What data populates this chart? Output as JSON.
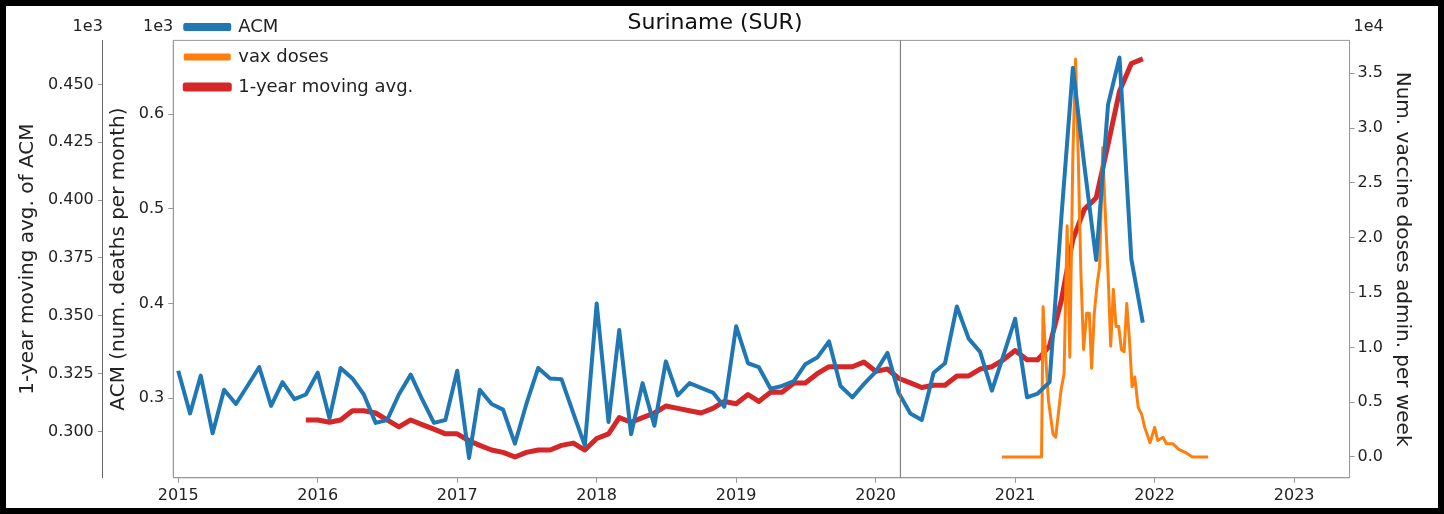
{
  "chart_data": {
    "type": "line",
    "title": "Suriname (SUR)",
    "ylabel": "ACM (num. deaths per month)",
    "y2label": "Num. vaccine doses admin. per week",
    "y3label": "1-year moving avg. of ACM",
    "xlim": [
      "2014-12-19",
      "2023-05-26"
    ],
    "xticks": [
      {
        "value": "2015-01-01",
        "label": "2015"
      },
      {
        "value": "2016-01-01",
        "label": "2016"
      },
      {
        "value": "2017-01-01",
        "label": "2017"
      },
      {
        "value": "2018-01-01",
        "label": "2018"
      },
      {
        "value": "2019-01-01",
        "label": "2019"
      },
      {
        "value": "2020-01-01",
        "label": "2020"
      },
      {
        "value": "2021-01-01",
        "label": "2021"
      },
      {
        "value": "2022-01-01",
        "label": "2022"
      },
      {
        "value": "2023-01-01",
        "label": "2023"
      }
    ],
    "ylim": [
      0.216,
      0.678
    ],
    "yticks": [
      0.3,
      0.4,
      0.5,
      0.6,
      {
        "value": null,
        "label": "1e3"
      }
    ],
    "y2lim": [
      -0.19,
      3.8
    ],
    "y2ticks": [
      {
        "value": 0,
        "label": "0.0"
      },
      0.5,
      {
        "value": 1,
        "label": "1.0"
      },
      1.5,
      {
        "value": 2,
        "label": "2.0"
      },
      2.5,
      {
        "value": 3,
        "label": "3.0"
      },
      3.5,
      {
        "value": null,
        "label": "1e4"
      }
    ],
    "y3lim": [
      0.28,
      0.469
    ],
    "y3ticks": [
      {
        "value": 0.3,
        "label": "0.300"
      },
      0.325,
      {
        "value": 0.35,
        "label": "0.350"
      },
      0.375,
      {
        "value": 0.4,
        "label": "0.400"
      },
      0.425,
      {
        "value": 0.45,
        "label": "0.450"
      },
      {
        "value": null,
        "label": "1e3"
      }
    ],
    "grid": false,
    "legend": "top left",
    "marker": "none",
    "line_style": "solid",
    "ref_lines": [
      {
        "axis": "x",
        "value": "2020-03-06",
        "label": null,
        "color": "#808080"
      }
    ],
    "series": [
      {
        "name": "ACM",
        "color": "#1f77b4",
        "x": [
          "2015-01",
          "2015-02",
          "2015-03",
          "2015-04",
          "2015-05",
          "2015-06",
          "2015-07",
          "2015-08",
          "2015-09",
          "2015-10",
          "2015-11",
          "2015-12",
          "2016-01",
          "2016-02",
          "2016-03",
          "2016-04",
          "2016-05",
          "2016-06",
          "2016-07",
          "2016-08",
          "2016-09",
          "2016-10",
          "2016-11",
          "2016-12",
          "2017-01",
          "2017-02",
          "2017-03",
          "2017-04",
          "2017-05",
          "2017-06",
          "2017-07",
          "2017-08",
          "2017-09",
          "2017-10",
          "2017-11",
          "2017-12",
          "2018-01",
          "2018-02",
          "2018-03",
          "2018-04",
          "2018-05",
          "2018-06",
          "2018-07",
          "2018-08",
          "2018-09",
          "2018-10",
          "2018-11",
          "2018-12",
          "2019-01",
          "2019-02",
          "2019-03",
          "2019-04",
          "2019-05",
          "2019-06",
          "2019-07",
          "2019-08",
          "2019-09",
          "2019-10",
          "2019-11",
          "2019-12",
          "2020-01",
          "2020-02",
          "2020-03",
          "2020-04",
          "2020-05",
          "2020-06",
          "2020-07",
          "2020-08",
          "2020-09",
          "2020-10",
          "2020-11",
          "2020-12",
          "2021-01",
          "2021-02",
          "2021-03",
          "2021-04",
          "2021-05",
          "2021-06",
          "2021-07",
          "2021-08",
          "2021-09",
          "2021-10",
          "2021-11",
          "2021-12"
        ],
        "values": [
          0.329,
          0.284,
          0.324,
          0.263,
          0.309,
          0.294,
          0.313,
          0.333,
          0.292,
          0.317,
          0.299,
          0.304,
          0.327,
          0.279,
          0.332,
          0.321,
          0.304,
          0.274,
          0.277,
          0.304,
          0.325,
          0.299,
          0.274,
          0.277,
          0.329,
          0.237,
          0.309,
          0.294,
          0.288,
          0.252,
          0.294,
          0.332,
          0.321,
          0.32,
          0.284,
          0.25,
          0.4,
          0.275,
          0.372,
          0.262,
          0.316,
          0.271,
          0.339,
          0.303,
          0.316,
          0.311,
          0.306,
          0.291,
          0.376,
          0.337,
          0.333,
          0.31,
          0.313,
          0.318,
          0.336,
          0.343,
          0.36,
          0.313,
          0.301,
          0.315,
          0.328,
          0.348,
          0.306,
          0.284,
          0.277,
          0.327,
          0.337,
          0.397,
          0.363,
          0.349,
          0.308,
          0.345,
          0.384,
          0.301,
          0.305,
          0.317,
          0.486,
          0.649,
          0.546,
          0.446,
          0.61,
          0.66,
          0.447,
          0.38
        ]
      },
      {
        "name": "vax doses",
        "color": "#ff7f0e",
        "axis": "y2",
        "x": [
          "2020-11-27",
          "2021-03-11",
          "2021-03-15",
          "2021-03-22",
          "2021-03-29",
          "2021-04-10",
          "2021-04-17",
          "2021-05-01",
          "2021-05-09",
          "2021-05-17",
          "2021-05-24",
          "2021-06-01",
          "2021-06-08",
          "2021-06-15",
          "2021-06-22",
          "2021-06-29",
          "2021-07-07",
          "2021-07-14",
          "2021-07-20",
          "2021-07-27",
          "2021-08-04",
          "2021-08-10",
          "2021-08-18",
          "2021-08-24",
          "2021-09-01",
          "2021-09-08",
          "2021-09-15",
          "2021-09-22",
          "2021-09-29",
          "2021-10-06",
          "2021-10-13",
          "2021-10-20",
          "2021-10-27",
          "2021-11-03",
          "2021-11-10",
          "2021-11-19",
          "2021-11-28",
          "2021-12-06",
          "2021-12-20",
          "2022-01-01",
          "2022-01-09",
          "2022-01-23",
          "2022-02-01",
          "2022-02-18",
          "2022-03-05",
          "2022-03-23",
          "2022-04-10",
          "2022-05-21"
        ],
        "values": [
          0,
          0,
          1.37,
          0.91,
          0.52,
          0.21,
          0.18,
          0.61,
          0.76,
          2.11,
          0.91,
          2.75,
          3.63,
          2.75,
          1.68,
          0.98,
          1.31,
          1.31,
          0.81,
          1.31,
          1.59,
          1.74,
          2.82,
          2.29,
          1.68,
          1.01,
          1.53,
          1.19,
          1.19,
          0.98,
          0.96,
          1.4,
          1.07,
          0.64,
          0.73,
          0.45,
          0.39,
          0.27,
          0.13,
          0.27,
          0.15,
          0.18,
          0.12,
          0.12,
          0.07,
          0.04,
          0,
          0
        ]
      },
      {
        "name": "1-year moving avg.",
        "color": "#d62728",
        "axis": "y3",
        "x": [
          "2015-12",
          "2016-01",
          "2016-02",
          "2016-03",
          "2016-04",
          "2016-05",
          "2016-06",
          "2016-07",
          "2016-08",
          "2016-09",
          "2016-10",
          "2016-11",
          "2016-12",
          "2017-01",
          "2017-02",
          "2017-03",
          "2017-04",
          "2017-05",
          "2017-06",
          "2017-07",
          "2017-08",
          "2017-09",
          "2017-10",
          "2017-11",
          "2017-12",
          "2018-01",
          "2018-02",
          "2018-03",
          "2018-04",
          "2018-05",
          "2018-06",
          "2018-07",
          "2018-08",
          "2018-09",
          "2018-10",
          "2018-11",
          "2018-12",
          "2019-01",
          "2019-02",
          "2019-03",
          "2019-04",
          "2019-05",
          "2019-06",
          "2019-07",
          "2019-08",
          "2019-09",
          "2019-10",
          "2019-11",
          "2019-12",
          "2020-01",
          "2020-02",
          "2020-03",
          "2020-04",
          "2020-05",
          "2020-06",
          "2020-07",
          "2020-08",
          "2020-09",
          "2020-10",
          "2020-11",
          "2020-12",
          "2021-01",
          "2021-02",
          "2021-03",
          "2021-04",
          "2021-05",
          "2021-06",
          "2021-07",
          "2021-08",
          "2021-09",
          "2021-10",
          "2021-11",
          "2021-12"
        ],
        "values": [
          0.305,
          0.305,
          0.304,
          0.305,
          0.309,
          0.309,
          0.308,
          0.305,
          0.302,
          0.305,
          0.303,
          0.301,
          0.299,
          0.299,
          0.296,
          0.294,
          0.292,
          0.291,
          0.289,
          0.291,
          0.292,
          0.292,
          0.294,
          0.295,
          0.292,
          0.297,
          0.299,
          0.306,
          0.304,
          0.306,
          0.308,
          0.311,
          0.31,
          0.309,
          0.308,
          0.31,
          0.313,
          0.312,
          0.316,
          0.313,
          0.317,
          0.317,
          0.321,
          0.321,
          0.325,
          0.328,
          0.328,
          0.328,
          0.33,
          0.326,
          0.327,
          0.323,
          0.321,
          0.319,
          0.32,
          0.32,
          0.324,
          0.324,
          0.327,
          0.328,
          0.331,
          0.335,
          0.331,
          0.331,
          0.337,
          0.356,
          0.383,
          0.396,
          0.401,
          0.424,
          0.447,
          0.459,
          0.461
        ]
      }
    ]
  }
}
